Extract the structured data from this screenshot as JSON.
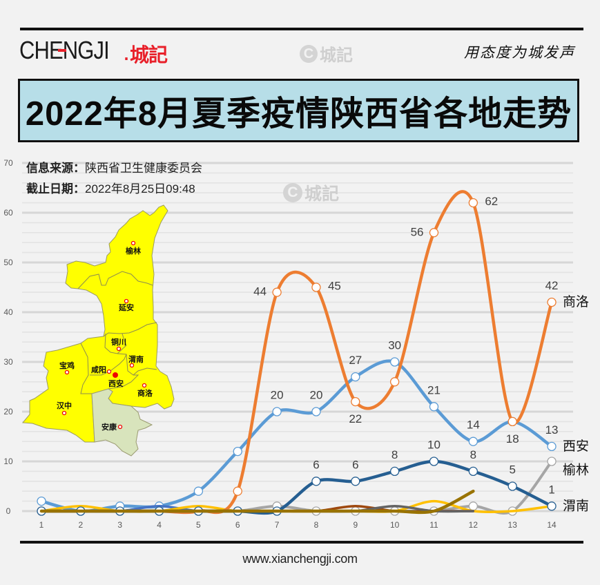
{
  "header": {
    "logo_text": "CHENGJI",
    "logo_dot": ".",
    "logo_cn": "城記",
    "watermark_letter": "C",
    "watermark_text": "城記",
    "slogan": "用态度为城发声"
  },
  "title": "2022年8月夏季疫情陕西省各地走势",
  "info": {
    "source_label": "信息来源：",
    "source_value": "陕西省卫生健康委员会",
    "date_label": "截止日期：",
    "date_value": "2022年8月25日09:48"
  },
  "map": {
    "province_fill": "#FFFF00",
    "ankang_fill": "#D8E4BC",
    "cities": [
      {
        "name": "榆林"
      },
      {
        "name": "延安"
      },
      {
        "name": "铜川"
      },
      {
        "name": "渭南"
      },
      {
        "name": "宝鸡"
      },
      {
        "name": "咸阳"
      },
      {
        "name": "西安"
      },
      {
        "name": "商洛"
      },
      {
        "name": "汉中"
      },
      {
        "name": "安康"
      }
    ]
  },
  "footer": {
    "url": "www.xianchengji.com"
  },
  "colors": {
    "background": "#F2F2F2",
    "title_bg": "#B7DEE8",
    "logo_red": "#E8202A"
  },
  "chart_data": {
    "type": "line",
    "title": "2022年8月夏季疫情陕西省各地走势",
    "xlabel": "",
    "ylabel": "",
    "x": [
      1,
      2,
      3,
      4,
      5,
      6,
      7,
      8,
      9,
      10,
      11,
      12,
      13,
      14
    ],
    "ylim": [
      0,
      70
    ],
    "yticks": [
      0,
      10,
      20,
      30,
      40,
      50,
      60,
      70
    ],
    "grid": {
      "major": 10,
      "minor": 2
    },
    "legend_position": "end-of-line labels",
    "series": [
      {
        "name": "榆林",
        "color": "#A5A5A5",
        "width": 4,
        "values": [
          0,
          0,
          0,
          0,
          0,
          0,
          1,
          0,
          0,
          0,
          0,
          1,
          0,
          10
        ],
        "markers": "all",
        "end_label": "榆林",
        "end_label_dy": 13,
        "labels": []
      },
      {
        "name": "西安",
        "color": "#5B9BD5",
        "width": 4.5,
        "values": [
          2,
          0,
          1,
          1,
          4,
          12,
          20,
          20,
          27,
          30,
          21,
          14,
          18,
          13
        ],
        "markers": "all",
        "end_label": "西安",
        "end_label_dy": 0,
        "labels": [
          {
            "x": 7,
            "text": "20",
            "pos": "above"
          },
          {
            "x": 8,
            "text": "20",
            "pos": "above"
          },
          {
            "x": 9,
            "text": "27",
            "pos": "above"
          },
          {
            "x": 10,
            "text": "30",
            "pos": "above"
          },
          {
            "x": 11,
            "text": "21",
            "pos": "above"
          },
          {
            "x": 12,
            "text": "14",
            "pos": "above"
          },
          {
            "x": 14,
            "text": "13",
            "pos": "above"
          }
        ]
      },
      {
        "name": "",
        "color": "#4472C4",
        "width": 3.5,
        "values": [
          0,
          0,
          0,
          1,
          0,
          0,
          0,
          0,
          0,
          0,
          0,
          0,
          null,
          null
        ],
        "markers": "none",
        "labels": []
      },
      {
        "name": "",
        "color": "#FFC000",
        "width": 3.5,
        "values": [
          0,
          1,
          0,
          0,
          1,
          0,
          0,
          0,
          0,
          0,
          2,
          0,
          0,
          1
        ],
        "markers": "none",
        "labels": []
      },
      {
        "name": "",
        "color": "#9E480E",
        "width": 3.5,
        "values": [
          0,
          0,
          0,
          0,
          0,
          0,
          0,
          0,
          1,
          0,
          0,
          0,
          null,
          null
        ],
        "markers": "none",
        "labels": []
      },
      {
        "name": "",
        "color": "#636363",
        "width": 3.5,
        "values": [
          0,
          0,
          0,
          0,
          0,
          0,
          0,
          0,
          0,
          1,
          0,
          0,
          null,
          null
        ],
        "markers": "none",
        "labels": []
      },
      {
        "name": "商洛",
        "color": "#ED7D31",
        "width": 4.5,
        "values": [
          0,
          0,
          0,
          0,
          0,
          4,
          44,
          45,
          22,
          26,
          56,
          62,
          18,
          42
        ],
        "markers": [
          6,
          7,
          8,
          9,
          10,
          11,
          12,
          13,
          14
        ],
        "end_label": "商洛",
        "end_label_dy": 0,
        "labels": [
          {
            "x": 7,
            "text": "44",
            "pos": "left"
          },
          {
            "x": 8,
            "text": "45",
            "pos": "right"
          },
          {
            "x": 9,
            "text": "22",
            "pos": "below"
          },
          {
            "x": 11,
            "text": "56",
            "pos": "left"
          },
          {
            "x": 12,
            "text": "62",
            "pos": "right"
          },
          {
            "x": 13,
            "text": "18",
            "pos": "below"
          },
          {
            "x": 14,
            "text": "42",
            "pos": "above"
          }
        ]
      },
      {
        "name": "渭南",
        "color": "#255E91",
        "width": 4.5,
        "values": [
          0,
          0,
          0,
          0,
          0,
          0,
          0,
          6,
          6,
          8,
          10,
          8,
          5,
          1
        ],
        "markers": "all",
        "end_label": "渭南",
        "end_label_dy": 0,
        "labels": [
          {
            "x": 8,
            "text": "6",
            "pos": "above"
          },
          {
            "x": 9,
            "text": "6",
            "pos": "above"
          },
          {
            "x": 10,
            "text": "8",
            "pos": "above"
          },
          {
            "x": 11,
            "text": "10",
            "pos": "above"
          },
          {
            "x": 12,
            "text": "8",
            "pos": "above"
          },
          {
            "x": 13,
            "text": "5",
            "pos": "above"
          },
          {
            "x": 14,
            "text": "1",
            "pos": "above"
          }
        ]
      },
      {
        "name": "",
        "color": "#997300",
        "width": 4.5,
        "values": [
          0,
          0,
          0,
          0,
          0,
          0,
          0,
          0,
          0,
          0,
          0,
          4,
          null,
          null
        ],
        "markers": "none",
        "labels": []
      }
    ]
  }
}
